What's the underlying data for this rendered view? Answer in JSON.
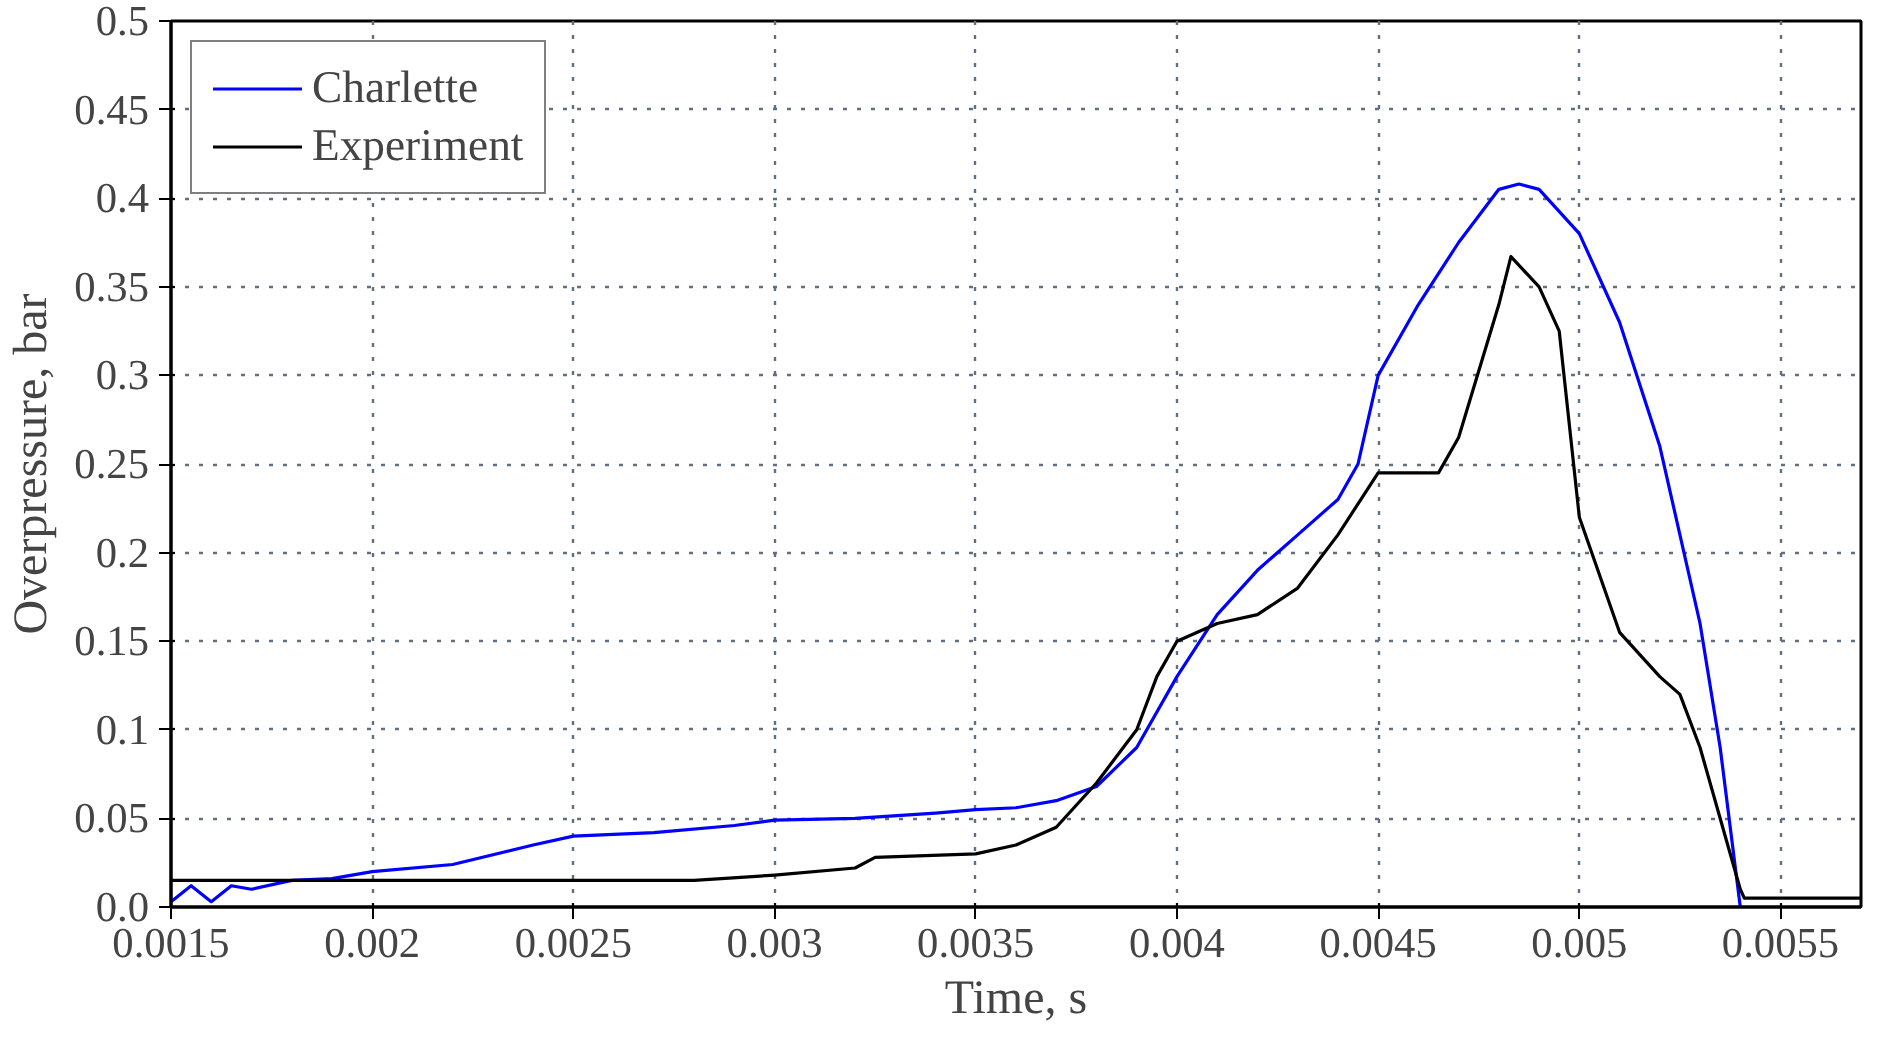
{
  "chart_data": {
    "type": "line",
    "xlabel": "Time, s",
    "ylabel": "Overpressure, bar",
    "xlim": [
      0.0015,
      0.0057
    ],
    "ylim": [
      0,
      0.5
    ],
    "xticks": [
      0.0015,
      0.002,
      0.0025,
      0.003,
      0.0035,
      0.004,
      0.0045,
      0.005,
      0.0055
    ],
    "yticks": [
      {
        "value": 0,
        "label": "0.0"
      },
      0.05,
      0.1,
      0.15,
      0.2,
      0.25,
      0.3,
      0.35,
      0.4,
      0.45,
      0.5
    ],
    "grid": true,
    "legend": "top left",
    "line_style": "solid",
    "marker": "none",
    "series": [
      {
        "name": "Charlette",
        "color": "#0000ff",
        "x": [
          0.0015,
          0.00155,
          0.0016,
          0.00165,
          0.0017,
          0.0018,
          0.0019,
          0.002,
          0.0022,
          0.0024,
          0.0025,
          0.0027,
          0.0029,
          0.003,
          0.0032,
          0.0034,
          0.0035,
          0.0036,
          0.0037,
          0.0038,
          0.0039,
          0.004,
          0.0041,
          0.0042,
          0.0043,
          0.0044,
          0.00445,
          0.0045,
          0.0046,
          0.0047,
          0.0048,
          0.00485,
          0.0049,
          0.005,
          0.0051,
          0.0052,
          0.0053,
          0.00535,
          0.0054
        ],
        "values": [
          0.003,
          0.012,
          0.003,
          0.012,
          0.01,
          0.015,
          0.016,
          0.02,
          0.024,
          0.035,
          0.04,
          0.042,
          0.046,
          0.049,
          0.05,
          0.053,
          0.055,
          0.056,
          0.06,
          0.068,
          0.09,
          0.13,
          0.165,
          0.19,
          0.21,
          0.23,
          0.25,
          0.3,
          0.34,
          0.375,
          0.405,
          0.408,
          0.405,
          0.38,
          0.33,
          0.26,
          0.16,
          0.09,
          0.0
        ]
      },
      {
        "name": "Experiment",
        "color": "#000000",
        "x": [
          0.0015,
          0.0028,
          0.003,
          0.0032,
          0.00325,
          0.0035,
          0.0036,
          0.0037,
          0.0038,
          0.0039,
          0.00395,
          0.004,
          0.0041,
          0.0042,
          0.0043,
          0.0044,
          0.0045,
          0.0046,
          0.00465,
          0.0047,
          0.0048,
          0.00483,
          0.0049,
          0.00495,
          0.005,
          0.0051,
          0.0052,
          0.00525,
          0.0053,
          0.0054,
          0.00541,
          0.0057
        ],
        "values": [
          0.015,
          0.015,
          0.018,
          0.022,
          0.028,
          0.03,
          0.035,
          0.045,
          0.07,
          0.1,
          0.13,
          0.15,
          0.16,
          0.165,
          0.18,
          0.21,
          0.245,
          0.245,
          0.245,
          0.265,
          0.34,
          0.367,
          0.35,
          0.325,
          0.22,
          0.155,
          0.13,
          0.12,
          0.09,
          0.01,
          0.005,
          0.005
        ]
      }
    ]
  }
}
